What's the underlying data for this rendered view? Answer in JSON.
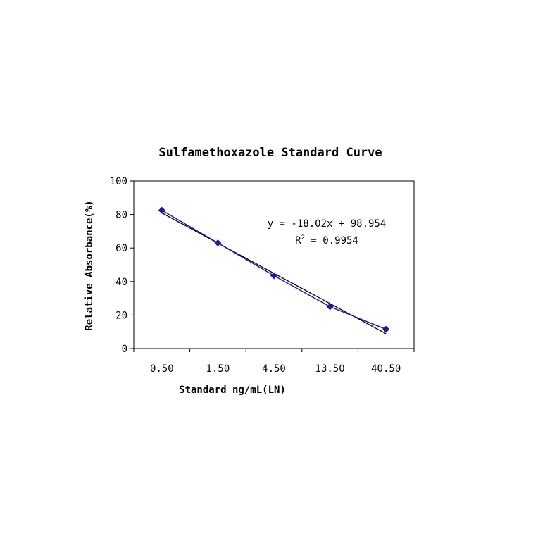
{
  "chart_data": {
    "type": "line",
    "title": "Sulfamethoxazole Standard Curve",
    "xlabel": "Standard ng/mL(LN)",
    "ylabel": "Relative Absorbance(%)",
    "categories": [
      "0.50",
      "1.50",
      "4.50",
      "13.50",
      "40.50"
    ],
    "y_ticks": [
      "0",
      "20",
      "40",
      "60",
      "80",
      "100"
    ],
    "ylim": [
      0,
      100
    ],
    "grid": false,
    "series": [
      {
        "values": [
          82.5,
          63,
          43.5,
          25,
          11.5
        ],
        "color": "#1f1f8c",
        "marker": "diamond"
      }
    ],
    "trendline": {
      "slope": -18.02,
      "intercept": 98.954,
      "color": "#000000",
      "equation": "y = -18.02x + 98.954",
      "r2_prefix": "R",
      "r2_sup": "2",
      "r2_value": " = 0.9954"
    }
  }
}
